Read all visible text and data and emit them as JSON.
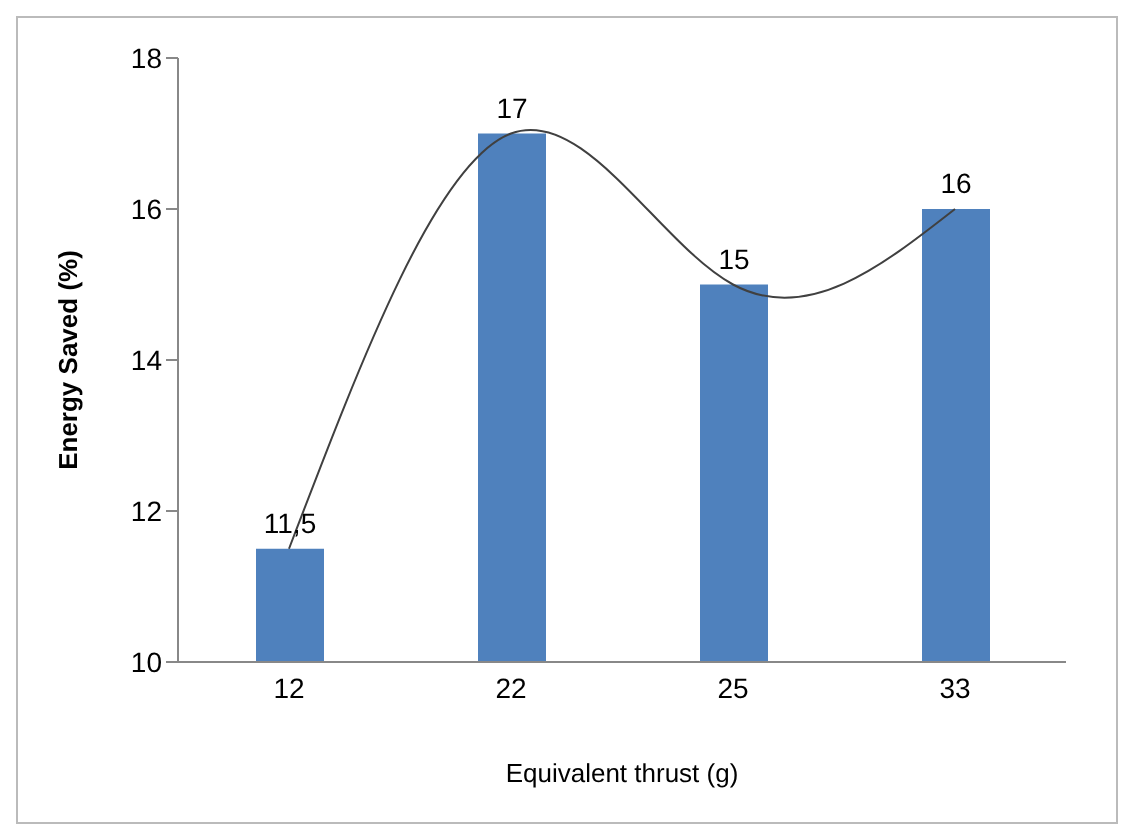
{
  "chart_data": {
    "type": "bar",
    "xlabel": "Equivalent thrust (g)",
    "ylabel": "Energy Saved (%)",
    "categories": [
      "12",
      "22",
      "25",
      "33"
    ],
    "series": [
      {
        "color": "#4f81bd",
        "values": [
          11.5,
          17,
          15,
          16
        ],
        "value_labels": [
          "11,5",
          "17",
          "15",
          "16"
        ]
      },
      {
        "type": "line",
        "color": "#404040",
        "values": [
          11.5,
          17,
          15,
          16
        ]
      }
    ],
    "ylim": [
      10,
      18
    ],
    "yticks": [
      10,
      12,
      14,
      16,
      18
    ],
    "marker": "none"
  }
}
